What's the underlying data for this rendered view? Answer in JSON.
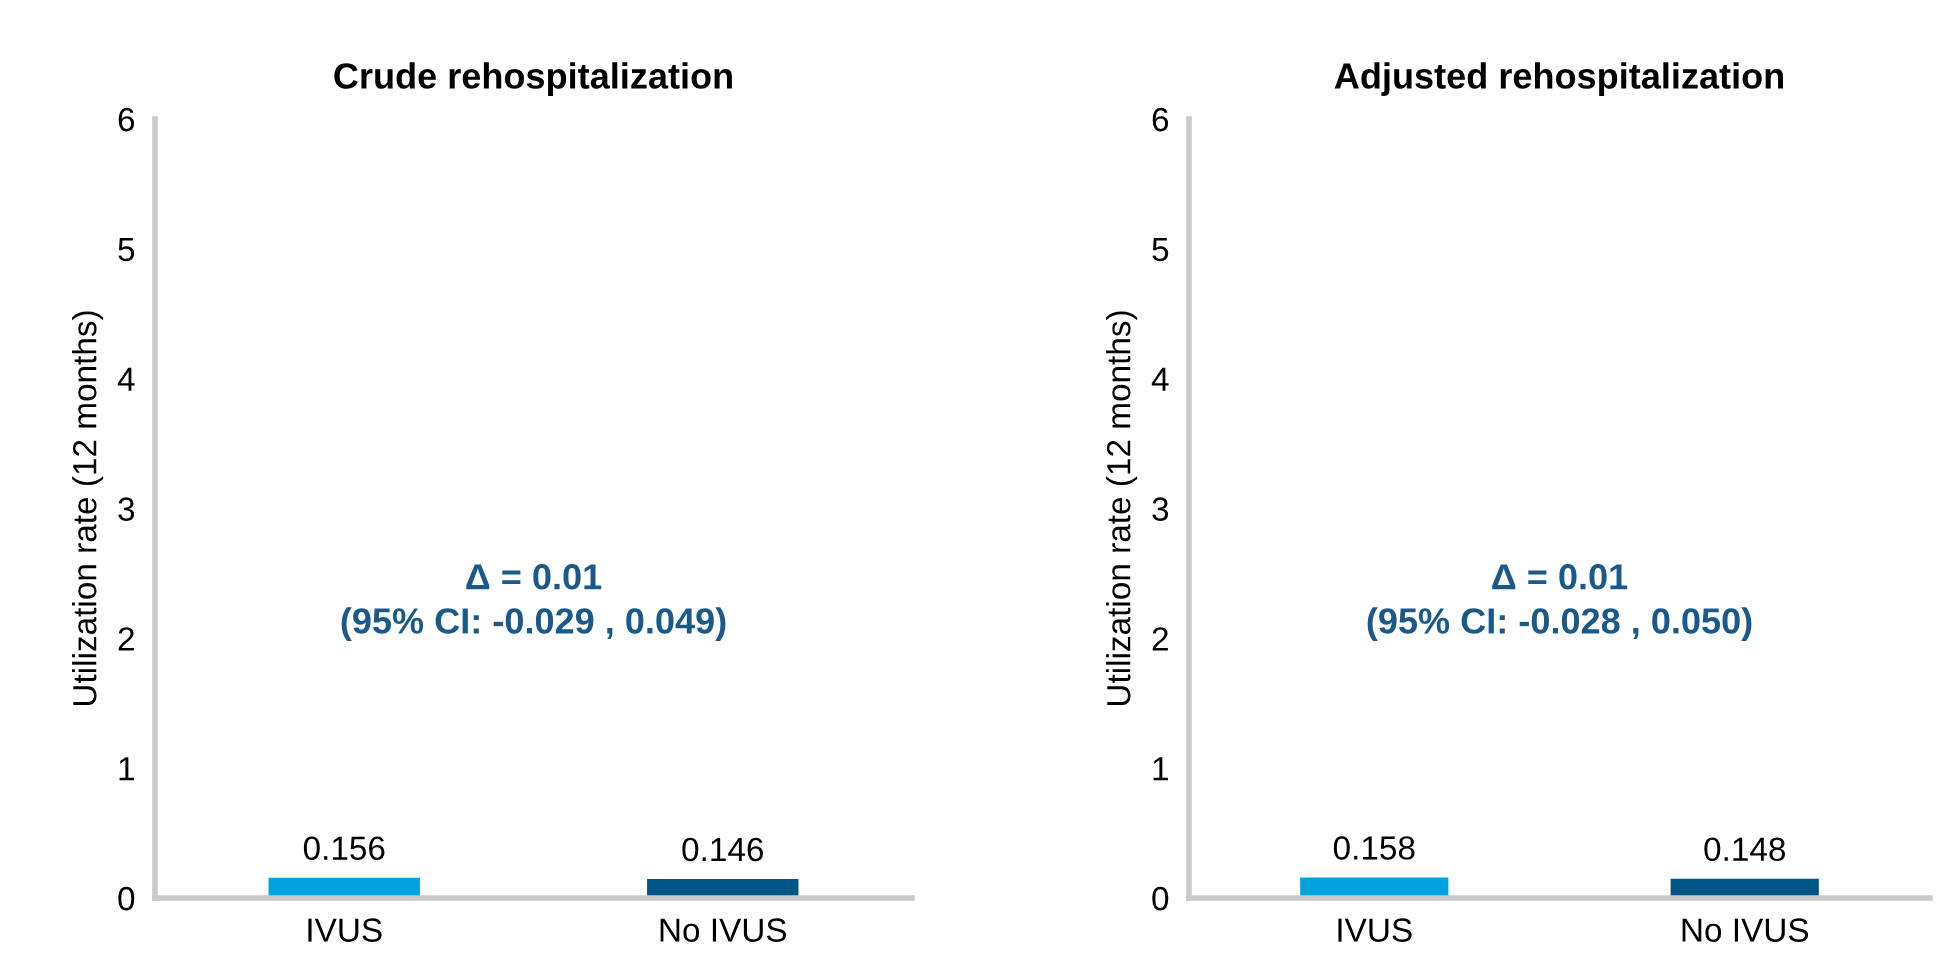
{
  "chart_data": [
    {
      "type": "bar",
      "title": "Crude rehospitalization",
      "ylabel": "Utilization rate (12 months)",
      "categories": [
        "IVUS",
        "No IVUS"
      ],
      "values": [
        0.156,
        0.146
      ],
      "colors": [
        "#00a3e0",
        "#005587"
      ],
      "data_labels": true,
      "ylim": [
        0,
        6
      ],
      "yticks": [
        0,
        1,
        2,
        3,
        4,
        5,
        6
      ],
      "grid": false,
      "legend": false,
      "annotations": [
        "Δ = 0.01\n(95% CI: -0.029 , 0.049)"
      ]
    },
    {
      "type": "bar",
      "title": "Adjusted rehospitalization",
      "ylabel": "Utilization rate (12 months)",
      "categories": [
        "IVUS",
        "No IVUS"
      ],
      "values": [
        0.158,
        0.148
      ],
      "colors": [
        "#00a3e0",
        "#005587"
      ],
      "data_labels": true,
      "ylim": [
        0,
        6
      ],
      "yticks": [
        0,
        1,
        2,
        3,
        4,
        5,
        6
      ],
      "grid": false,
      "legend": false,
      "annotations": [
        "Δ = 0.01\n(95% CI: -0.028 , 0.050)"
      ]
    }
  ]
}
